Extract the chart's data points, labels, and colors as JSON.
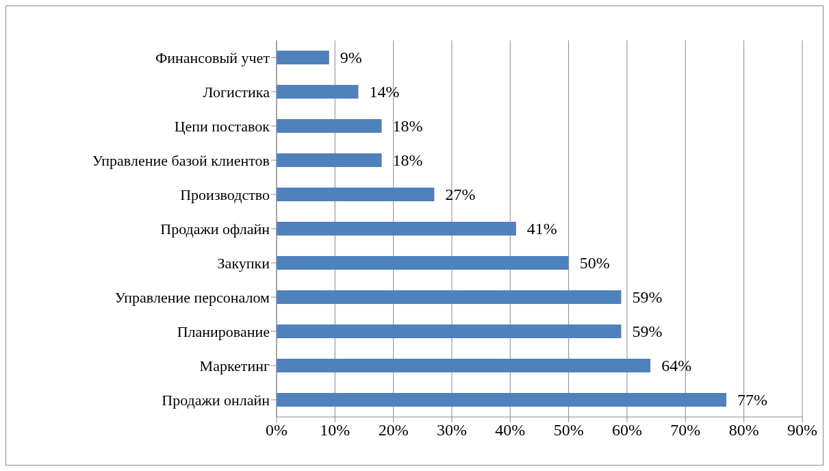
{
  "chart_data": {
    "type": "bar",
    "orientation": "horizontal",
    "categories": [
      "Финансовый учет",
      "Логистика",
      "Цепи поставок",
      "Управление базой клиентов",
      "Производство",
      "Продажи офлайн",
      "Закупки",
      "Управление персоналом",
      "Планирование",
      "Маркетинг",
      "Продажи онлайн"
    ],
    "values": [
      9,
      14,
      18,
      18,
      27,
      41,
      50,
      59,
      59,
      64,
      77
    ],
    "value_labels": [
      "9%",
      "14%",
      "18%",
      "18%",
      "27%",
      "41%",
      "50%",
      "59%",
      "59%",
      "64%",
      "77%"
    ],
    "color": "#4f81bd",
    "xlim": [
      0,
      90
    ],
    "xticks": [
      {
        "value": 0,
        "label": "0%"
      },
      {
        "value": 10,
        "label": "10%"
      },
      {
        "value": 20,
        "label": "20%"
      },
      {
        "value": 30,
        "label": "30%"
      },
      {
        "value": 40,
        "label": "40%"
      },
      {
        "value": 50,
        "label": "50%"
      },
      {
        "value": 60,
        "label": "60%"
      },
      {
        "value": 70,
        "label": "70%"
      },
      {
        "value": 80,
        "label": "80%"
      },
      {
        "value": 90,
        "label": "90%"
      }
    ],
    "grid": "x"
  }
}
